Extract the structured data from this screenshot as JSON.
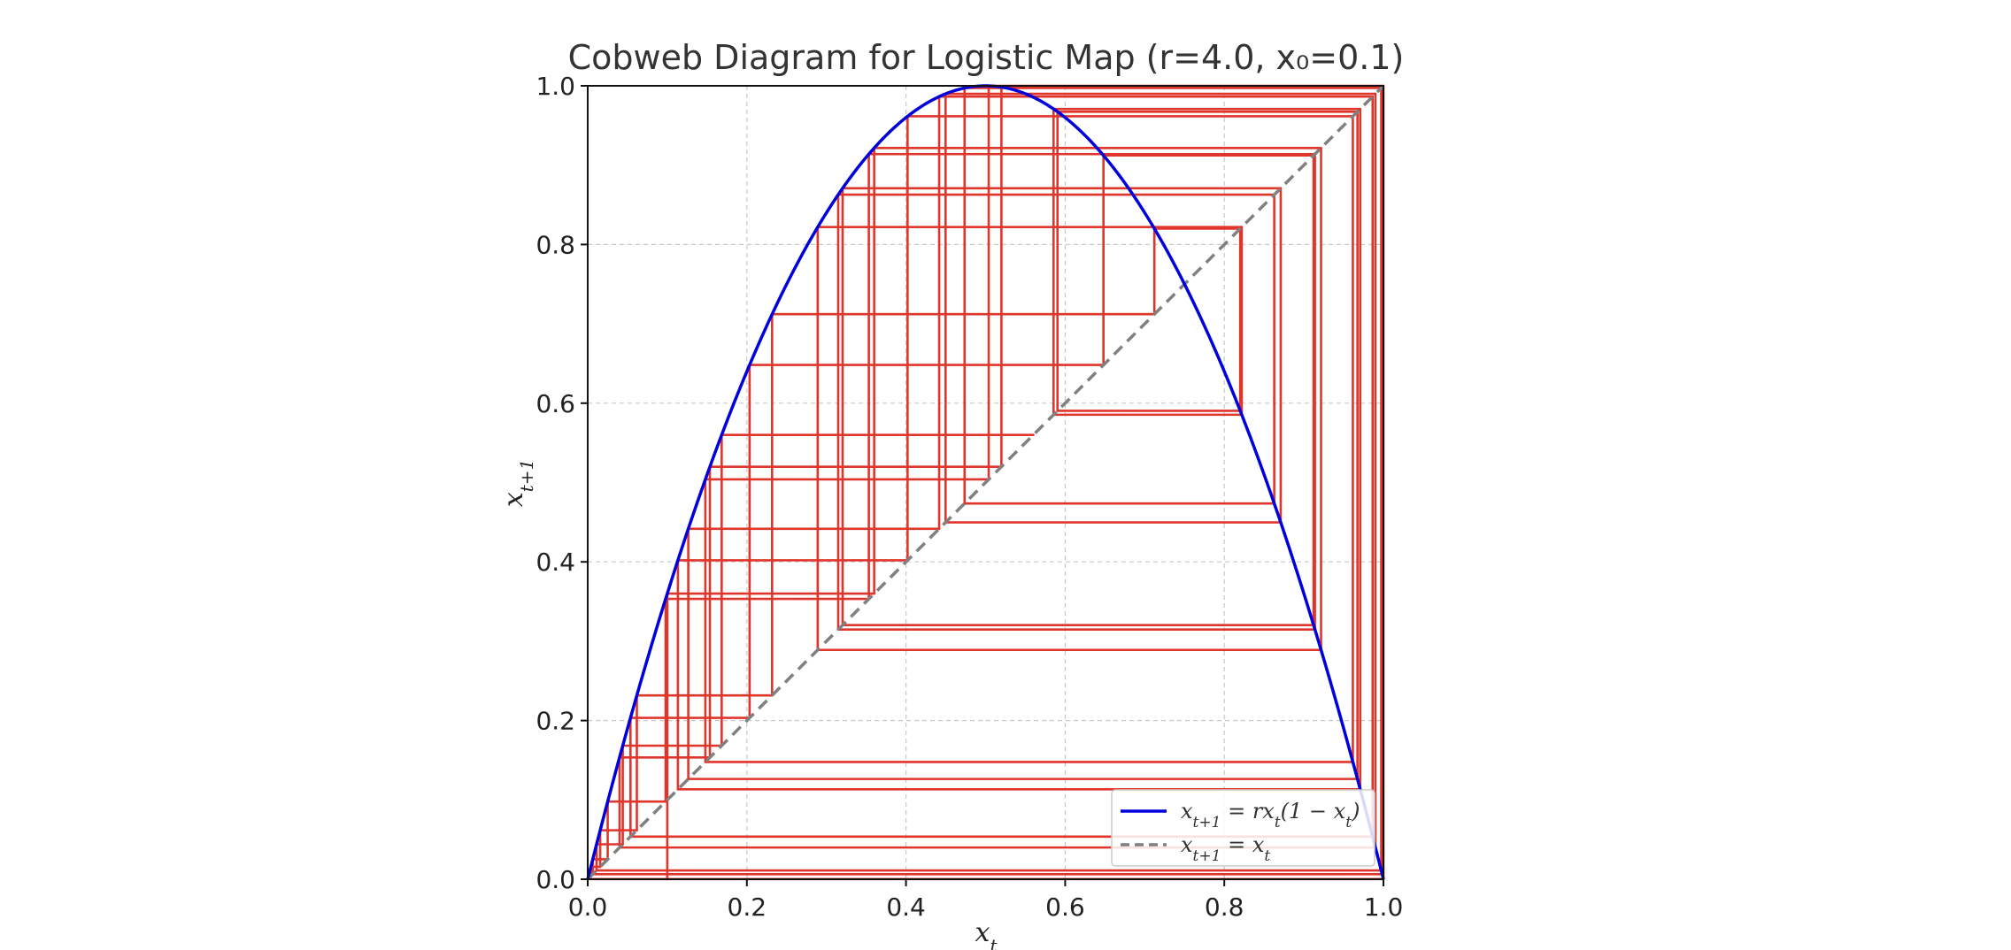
{
  "chart_data": {
    "type": "line",
    "title": "Cobweb Diagram for Logistic Map (r=4.0, x₀=0.1)",
    "xlabel": "x",
    "xlabel_sub": "t",
    "ylabel": "x",
    "ylabel_sub": "t+1",
    "xlim": [
      0.0,
      1.0
    ],
    "ylim": [
      0.0,
      1.0
    ],
    "x_ticks": [
      "0.0",
      "0.2",
      "0.4",
      "0.6",
      "0.8",
      "1.0"
    ],
    "y_ticks": [
      "0.0",
      "0.2",
      "0.4",
      "0.6",
      "0.8",
      "1.0"
    ],
    "grid": true,
    "legend_position": "lower-right",
    "r": 4.0,
    "x0": 0.1,
    "iterations": 50,
    "series": [
      {
        "name": "x_{t+1} = r x_t (1 − x_t)",
        "label_main": "x",
        "label_sub": "t+1",
        "label_rest": " = rx",
        "label_sub2": "t",
        "label_tail": "(1 − x",
        "label_sub3": "t",
        "label_end": ")",
        "color": "#0000dd",
        "style": "solid"
      },
      {
        "name": "x_{t+1} = x_t",
        "label_main": "x",
        "label_sub": "t+1",
        "label_rest": " = x",
        "label_sub2": "t",
        "color": "#808080",
        "style": "dashed"
      }
    ],
    "cobweb_color": "#e0352b"
  }
}
